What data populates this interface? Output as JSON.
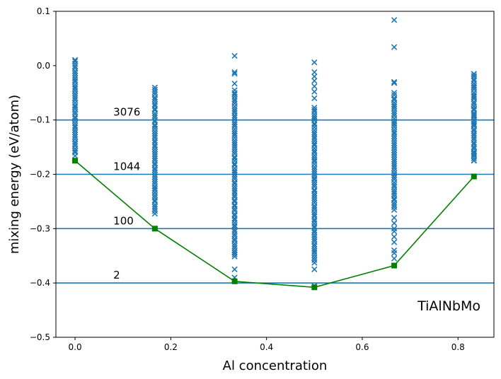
{
  "chart_data": {
    "type": "scatter",
    "xlabel": "Al concentration",
    "ylabel": "mixing energy (eV/atom)",
    "annotation": "TiAlNbMo",
    "xlim": [
      -0.04,
      0.875
    ],
    "ylim": [
      -0.5,
      0.1
    ],
    "xticks": [
      0.0,
      0.2,
      0.4,
      0.6,
      0.8
    ],
    "xtick_labels": [
      "0.0",
      "0.2",
      "0.4",
      "0.6",
      "0.8"
    ],
    "yticks": [
      0.1,
      0.0,
      -0.1,
      -0.2,
      -0.3,
      -0.4,
      -0.5
    ],
    "ytick_labels": [
      "0.1",
      "0.0",
      "−0.1",
      "−0.2",
      "−0.3",
      "−0.4",
      "−0.5"
    ],
    "grid": false,
    "colors": {
      "scatter": "#1f77b4",
      "hull": "#008000",
      "hlines": "#1f77b4"
    },
    "scatter_series": {
      "marker": "x",
      "columns": [
        {
          "x": 0.0,
          "ymin": -0.165,
          "ymax": 0.012,
          "outliers": []
        },
        {
          "x": 0.1667,
          "ymin": -0.272,
          "ymax": -0.037,
          "outliers": [
            -0.3
          ]
        },
        {
          "x": 0.3333,
          "ymin": -0.352,
          "ymax": -0.045,
          "outliers": [
            0.018,
            -0.012,
            -0.015,
            -0.033,
            -0.375,
            -0.39
          ]
        },
        {
          "x": 0.5,
          "ymin": -0.362,
          "ymax": -0.075,
          "outliers": [
            0.006,
            -0.012,
            -0.02,
            -0.028,
            -0.038,
            -0.048,
            -0.06,
            -0.375,
            -0.405
          ]
        },
        {
          "x": 0.6667,
          "ymin": -0.265,
          "ymax": -0.055,
          "outliers": [
            0.084,
            0.034,
            -0.03,
            -0.032,
            -0.05,
            -0.062,
            -0.28,
            -0.29,
            -0.3,
            -0.305,
            -0.315,
            -0.325,
            -0.34,
            -0.345,
            -0.355
          ]
        },
        {
          "x": 0.8333,
          "ymin": -0.175,
          "ymax": -0.015,
          "outliers": [
            -0.015,
            -0.02,
            -0.04,
            -0.058,
            -0.08,
            -0.09,
            -0.1,
            -0.11,
            -0.125,
            -0.15,
            -0.16,
            -0.165,
            -0.175
          ]
        }
      ]
    },
    "hull_series": {
      "marker": "square",
      "x": [
        0.0,
        0.1667,
        0.3333,
        0.5,
        0.6667,
        0.8333
      ],
      "y": [
        -0.175,
        -0.3,
        -0.397,
        -0.408,
        -0.368,
        -0.204
      ]
    },
    "hlines": [
      {
        "y": -0.1,
        "label": "3076"
      },
      {
        "y": -0.2,
        "label": "1044"
      },
      {
        "y": -0.3,
        "label": "100"
      },
      {
        "y": -0.4,
        "label": "2"
      }
    ]
  }
}
